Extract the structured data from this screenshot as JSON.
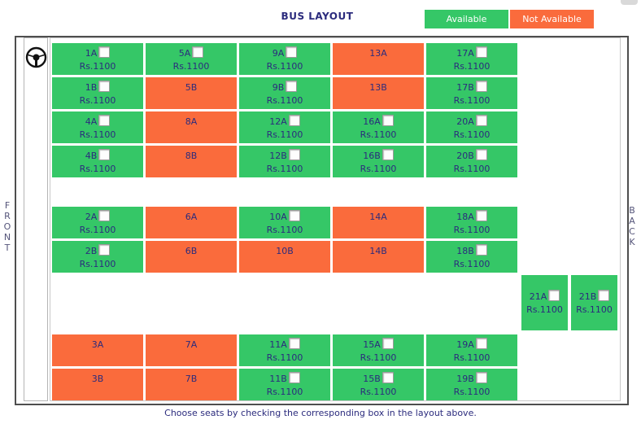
{
  "header": {
    "title": "BUS LAYOUT",
    "legend": {
      "available_label": "Available",
      "not_available_label": "Not Available"
    }
  },
  "orientation": {
    "front_label": "FRONT",
    "back_label": "BACK"
  },
  "footer": {
    "caption": "Choose seats by checking the corresponding box in the layout above."
  },
  "colors": {
    "available": "#35C767",
    "not_available": "#FA6B3C",
    "text_navy": "#2B2B7D"
  },
  "seats": [
    {
      "label": "1A",
      "row": 1,
      "col": 1,
      "available": true,
      "price": "Rs.1100",
      "checked": false
    },
    {
      "label": "5A",
      "row": 1,
      "col": 2,
      "available": true,
      "price": "Rs.1100",
      "checked": false
    },
    {
      "label": "9A",
      "row": 1,
      "col": 3,
      "available": true,
      "price": "Rs.1100",
      "checked": false
    },
    {
      "label": "13A",
      "row": 1,
      "col": 4,
      "available": false
    },
    {
      "label": "17A",
      "row": 1,
      "col": 5,
      "available": true,
      "price": "Rs.1100",
      "checked": false
    },
    {
      "label": "1B",
      "row": 2,
      "col": 1,
      "available": true,
      "price": "Rs.1100",
      "checked": false
    },
    {
      "label": "5B",
      "row": 2,
      "col": 2,
      "available": false
    },
    {
      "label": "9B",
      "row": 2,
      "col": 3,
      "available": true,
      "price": "Rs.1100",
      "checked": false
    },
    {
      "label": "13B",
      "row": 2,
      "col": 4,
      "available": false
    },
    {
      "label": "17B",
      "row": 2,
      "col": 5,
      "available": true,
      "price": "Rs.1100",
      "checked": false
    },
    {
      "label": "4A",
      "row": 3,
      "col": 1,
      "available": true,
      "price": "Rs.1100",
      "checked": false
    },
    {
      "label": "8A",
      "row": 3,
      "col": 2,
      "available": false
    },
    {
      "label": "12A",
      "row": 3,
      "col": 3,
      "available": true,
      "price": "Rs.1100",
      "checked": false
    },
    {
      "label": "16A",
      "row": 3,
      "col": 4,
      "available": true,
      "price": "Rs.1100",
      "checked": false
    },
    {
      "label": "20A",
      "row": 3,
      "col": 5,
      "available": true,
      "price": "Rs.1100",
      "checked": false
    },
    {
      "label": "4B",
      "row": 4,
      "col": 1,
      "available": true,
      "price": "Rs.1100",
      "checked": false
    },
    {
      "label": "8B",
      "row": 4,
      "col": 2,
      "available": false
    },
    {
      "label": "12B",
      "row": 4,
      "col": 3,
      "available": true,
      "price": "Rs.1100",
      "checked": false
    },
    {
      "label": "16B",
      "row": 4,
      "col": 4,
      "available": true,
      "price": "Rs.1100",
      "checked": false
    },
    {
      "label": "20B",
      "row": 4,
      "col": 5,
      "available": true,
      "price": "Rs.1100",
      "checked": false
    },
    {
      "label": "2A",
      "row": 5,
      "col": 1,
      "available": true,
      "price": "Rs.1100",
      "checked": false
    },
    {
      "label": "6A",
      "row": 5,
      "col": 2,
      "available": false
    },
    {
      "label": "10A",
      "row": 5,
      "col": 3,
      "available": true,
      "price": "Rs.1100",
      "checked": false
    },
    {
      "label": "14A",
      "row": 5,
      "col": 4,
      "available": false
    },
    {
      "label": "18A",
      "row": 5,
      "col": 5,
      "available": true,
      "price": "Rs.1100",
      "checked": false
    },
    {
      "label": "2B",
      "row": 6,
      "col": 1,
      "available": true,
      "price": "Rs.1100",
      "checked": false
    },
    {
      "label": "6B",
      "row": 6,
      "col": 2,
      "available": false
    },
    {
      "label": "10B",
      "row": 6,
      "col": 3,
      "available": false
    },
    {
      "label": "14B",
      "row": 6,
      "col": 4,
      "available": false
    },
    {
      "label": "18B",
      "row": 6,
      "col": 5,
      "available": true,
      "price": "Rs.1100",
      "checked": false
    },
    {
      "label": "21A",
      "row": "back",
      "col": 1,
      "available": true,
      "price": "Rs.1100",
      "checked": false
    },
    {
      "label": "21B",
      "row": "back",
      "col": 2,
      "available": true,
      "price": "Rs.1100",
      "checked": false
    },
    {
      "label": "3A",
      "row": 7,
      "col": 1,
      "available": false
    },
    {
      "label": "7A",
      "row": 7,
      "col": 2,
      "available": false
    },
    {
      "label": "11A",
      "row": 7,
      "col": 3,
      "available": true,
      "price": "Rs.1100",
      "checked": false
    },
    {
      "label": "15A",
      "row": 7,
      "col": 4,
      "available": true,
      "price": "Rs.1100",
      "checked": false
    },
    {
      "label": "19A",
      "row": 7,
      "col": 5,
      "available": true,
      "price": "Rs.1100",
      "checked": false
    },
    {
      "label": "3B",
      "row": 8,
      "col": 1,
      "available": false
    },
    {
      "label": "7B",
      "row": 8,
      "col": 2,
      "available": false
    },
    {
      "label": "11B",
      "row": 8,
      "col": 3,
      "available": true,
      "price": "Rs.1100",
      "checked": false
    },
    {
      "label": "15B",
      "row": 8,
      "col": 4,
      "available": true,
      "price": "Rs.1100",
      "checked": false
    },
    {
      "label": "19B",
      "row": 8,
      "col": 5,
      "available": true,
      "price": "Rs.1100",
      "checked": false
    }
  ]
}
